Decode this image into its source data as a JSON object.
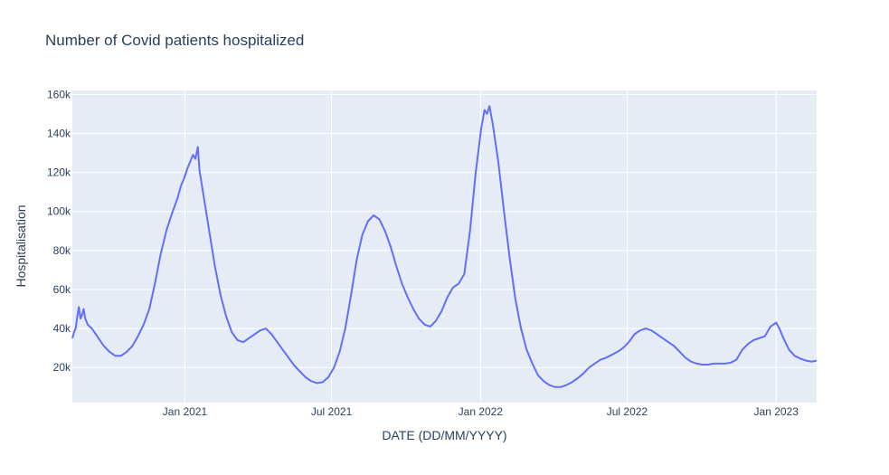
{
  "chart_data": {
    "type": "line",
    "title": "Number of Covid patients hospitalized",
    "xlabel": "DATE (DD/MM/YYYY)",
    "ylabel": "Hospitalisation",
    "x_range": [
      "2020-08-15",
      "2023-02-20"
    ],
    "ylim": [
      2000,
      162000
    ],
    "grid": true,
    "legend": "none",
    "colors": {
      "plot_bg": "#e5ecf6",
      "grid": "#ffffff",
      "line": "#636efa",
      "text": "#2a3f5f"
    },
    "x_ticks": [
      {
        "date": "2021-01-01",
        "label": "Jan 2021"
      },
      {
        "date": "2021-07-01",
        "label": "Jul 2021"
      },
      {
        "date": "2022-01-01",
        "label": "Jan 2022"
      },
      {
        "date": "2022-07-01",
        "label": "Jul 2022"
      },
      {
        "date": "2023-01-01",
        "label": "Jan 2023"
      }
    ],
    "y_ticks": [
      {
        "value": 20000,
        "label": "20k"
      },
      {
        "value": 40000,
        "label": "40k"
      },
      {
        "value": 60000,
        "label": "60k"
      },
      {
        "value": 80000,
        "label": "80k"
      },
      {
        "value": 100000,
        "label": "100k"
      },
      {
        "value": 120000,
        "label": "120k"
      },
      {
        "value": 140000,
        "label": "140k"
      },
      {
        "value": 160000,
        "label": "160k"
      }
    ],
    "series": [
      {
        "points": [
          [
            "2020-08-15",
            35000
          ],
          [
            "2020-08-17",
            38000
          ],
          [
            "2020-08-19",
            40000
          ],
          [
            "2020-08-21",
            46000
          ],
          [
            "2020-08-23",
            51000
          ],
          [
            "2020-08-25",
            45000
          ],
          [
            "2020-08-27",
            47000
          ],
          [
            "2020-08-29",
            50000
          ],
          [
            "2020-08-31",
            45000
          ],
          [
            "2020-09-03",
            42000
          ],
          [
            "2020-09-08",
            40000
          ],
          [
            "2020-09-13",
            37000
          ],
          [
            "2020-09-18",
            34000
          ],
          [
            "2020-09-23",
            31000
          ],
          [
            "2020-09-30",
            28000
          ],
          [
            "2020-10-07",
            26000
          ],
          [
            "2020-10-14",
            26000
          ],
          [
            "2020-10-21",
            28000
          ],
          [
            "2020-10-28",
            31000
          ],
          [
            "2020-11-04",
            36000
          ],
          [
            "2020-11-11",
            42000
          ],
          [
            "2020-11-18",
            50000
          ],
          [
            "2020-11-25",
            63000
          ],
          [
            "2020-12-02",
            78000
          ],
          [
            "2020-12-09",
            90000
          ],
          [
            "2020-12-16",
            99000
          ],
          [
            "2020-12-23",
            107000
          ],
          [
            "2020-12-27",
            113000
          ],
          [
            "2020-12-31",
            117000
          ],
          [
            "2021-01-04",
            122000
          ],
          [
            "2021-01-08",
            126000
          ],
          [
            "2021-01-11",
            129000
          ],
          [
            "2021-01-14",
            127000
          ],
          [
            "2021-01-17",
            133000
          ],
          [
            "2021-01-19",
            121000
          ],
          [
            "2021-01-24",
            108000
          ],
          [
            "2021-01-31",
            90000
          ],
          [
            "2021-02-07",
            72000
          ],
          [
            "2021-02-14",
            57000
          ],
          [
            "2021-02-21",
            46000
          ],
          [
            "2021-02-28",
            38000
          ],
          [
            "2021-03-07",
            34000
          ],
          [
            "2021-03-14",
            33000
          ],
          [
            "2021-03-21",
            35000
          ],
          [
            "2021-03-28",
            37000
          ],
          [
            "2021-04-04",
            39000
          ],
          [
            "2021-04-11",
            40000
          ],
          [
            "2021-04-18",
            37000
          ],
          [
            "2021-04-25",
            33000
          ],
          [
            "2021-05-02",
            29000
          ],
          [
            "2021-05-09",
            25000
          ],
          [
            "2021-05-16",
            21000
          ],
          [
            "2021-05-23",
            18000
          ],
          [
            "2021-05-30",
            15000
          ],
          [
            "2021-06-06",
            13000
          ],
          [
            "2021-06-13",
            12000
          ],
          [
            "2021-06-20",
            12500
          ],
          [
            "2021-06-27",
            15000
          ],
          [
            "2021-07-04",
            20000
          ],
          [
            "2021-07-11",
            28000
          ],
          [
            "2021-07-18",
            40000
          ],
          [
            "2021-07-25",
            57000
          ],
          [
            "2021-08-01",
            75000
          ],
          [
            "2021-08-08",
            88000
          ],
          [
            "2021-08-15",
            95000
          ],
          [
            "2021-08-22",
            98000
          ],
          [
            "2021-08-29",
            96000
          ],
          [
            "2021-09-05",
            90000
          ],
          [
            "2021-09-12",
            82000
          ],
          [
            "2021-09-19",
            72000
          ],
          [
            "2021-09-26",
            63000
          ],
          [
            "2021-10-03",
            56000
          ],
          [
            "2021-10-10",
            50000
          ],
          [
            "2021-10-17",
            45000
          ],
          [
            "2021-10-24",
            42000
          ],
          [
            "2021-10-31",
            41000
          ],
          [
            "2021-11-07",
            44000
          ],
          [
            "2021-11-14",
            49000
          ],
          [
            "2021-11-21",
            56000
          ],
          [
            "2021-11-28",
            61000
          ],
          [
            "2021-12-05",
            63000
          ],
          [
            "2021-12-12",
            68000
          ],
          [
            "2021-12-19",
            90000
          ],
          [
            "2021-12-26",
            120000
          ],
          [
            "2022-01-02",
            143000
          ],
          [
            "2022-01-06",
            152000
          ],
          [
            "2022-01-09",
            150000
          ],
          [
            "2022-01-12",
            154000
          ],
          [
            "2022-01-16",
            145000
          ],
          [
            "2022-01-23",
            125000
          ],
          [
            "2022-01-30",
            100000
          ],
          [
            "2022-02-06",
            76000
          ],
          [
            "2022-02-13",
            55000
          ],
          [
            "2022-02-20",
            40000
          ],
          [
            "2022-02-27",
            29000
          ],
          [
            "2022-03-06",
            22000
          ],
          [
            "2022-03-13",
            16000
          ],
          [
            "2022-03-20",
            13000
          ],
          [
            "2022-03-27",
            11000
          ],
          [
            "2022-04-03",
            10000
          ],
          [
            "2022-04-10",
            10000
          ],
          [
            "2022-04-17",
            11000
          ],
          [
            "2022-04-24",
            12500
          ],
          [
            "2022-05-01",
            14500
          ],
          [
            "2022-05-08",
            17000
          ],
          [
            "2022-05-15",
            20000
          ],
          [
            "2022-05-22",
            22000
          ],
          [
            "2022-05-29",
            24000
          ],
          [
            "2022-06-05",
            25000
          ],
          [
            "2022-06-12",
            26500
          ],
          [
            "2022-06-19",
            28000
          ],
          [
            "2022-06-26",
            30000
          ],
          [
            "2022-07-03",
            33000
          ],
          [
            "2022-07-10",
            37000
          ],
          [
            "2022-07-17",
            39000
          ],
          [
            "2022-07-24",
            40000
          ],
          [
            "2022-07-31",
            39000
          ],
          [
            "2022-08-07",
            37000
          ],
          [
            "2022-08-14",
            35000
          ],
          [
            "2022-08-21",
            33000
          ],
          [
            "2022-08-28",
            31000
          ],
          [
            "2022-09-04",
            28000
          ],
          [
            "2022-09-11",
            25000
          ],
          [
            "2022-09-18",
            23000
          ],
          [
            "2022-09-25",
            22000
          ],
          [
            "2022-10-02",
            21500
          ],
          [
            "2022-10-09",
            21500
          ],
          [
            "2022-10-16",
            22000
          ],
          [
            "2022-10-23",
            22000
          ],
          [
            "2022-10-30",
            22000
          ],
          [
            "2022-11-06",
            22500
          ],
          [
            "2022-11-13",
            24000
          ],
          [
            "2022-11-20",
            29000
          ],
          [
            "2022-11-27",
            32000
          ],
          [
            "2022-12-04",
            34000
          ],
          [
            "2022-12-11",
            35000
          ],
          [
            "2022-12-18",
            36000
          ],
          [
            "2022-12-25",
            41000
          ],
          [
            "2023-01-01",
            43000
          ],
          [
            "2023-01-05",
            40000
          ],
          [
            "2023-01-10",
            35000
          ],
          [
            "2023-01-17",
            29000
          ],
          [
            "2023-01-24",
            26000
          ],
          [
            "2023-01-31",
            24500
          ],
          [
            "2023-02-07",
            23500
          ],
          [
            "2023-02-14",
            23000
          ],
          [
            "2023-02-20",
            23500
          ]
        ]
      }
    ]
  }
}
